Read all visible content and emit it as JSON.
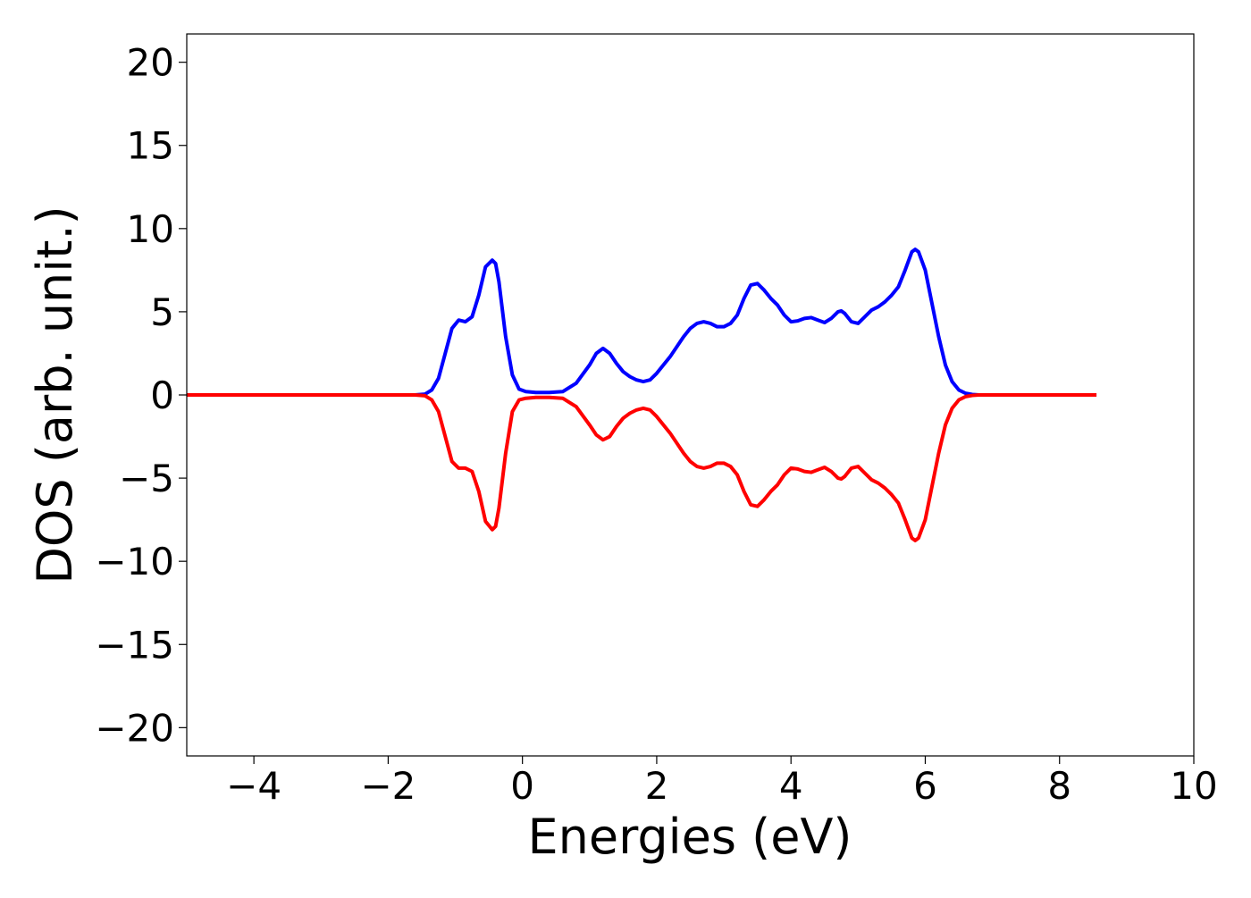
{
  "chart_data": {
    "type": "line",
    "title": "",
    "xlabel": "Energies (eV)",
    "ylabel": "DOS (arb. unit.)",
    "xlim": [
      -5.0,
      10.0
    ],
    "ylim": [
      -21.7,
      21.7
    ],
    "grid": false,
    "legend": "none",
    "xticks": [
      {
        "value": -4,
        "label": "−4"
      },
      {
        "value": -2,
        "label": "−2"
      },
      {
        "value": 0,
        "label": "0"
      },
      {
        "value": 2,
        "label": "2"
      },
      {
        "value": 4,
        "label": "4"
      },
      {
        "value": 6,
        "label": "6"
      },
      {
        "value": 8,
        "label": "8"
      },
      {
        "value": 10,
        "label": "10"
      }
    ],
    "yticks": [
      {
        "value": 20,
        "label": "20"
      },
      {
        "value": 15,
        "label": "15"
      },
      {
        "value": 10,
        "label": "10"
      },
      {
        "value": 5,
        "label": "5"
      },
      {
        "value": 0,
        "label": "0"
      },
      {
        "value": -5,
        "label": "−5"
      },
      {
        "value": -10,
        "label": "−10"
      },
      {
        "value": -15,
        "label": "−15"
      },
      {
        "value": -20,
        "label": "−20"
      }
    ],
    "series": [
      {
        "color": "#0000ff",
        "x": [
          -5.0,
          -2.0,
          -1.6,
          -1.45,
          -1.35,
          -1.25,
          -1.15,
          -1.05,
          -0.95,
          -0.85,
          -0.75,
          -0.65,
          -0.55,
          -0.45,
          -0.4,
          -0.35,
          -0.25,
          -0.15,
          -0.05,
          0.05,
          0.2,
          0.4,
          0.6,
          0.8,
          1.0,
          1.1,
          1.2,
          1.3,
          1.4,
          1.5,
          1.6,
          1.7,
          1.8,
          1.9,
          2.0,
          2.2,
          2.4,
          2.5,
          2.6,
          2.7,
          2.8,
          2.9,
          3.0,
          3.1,
          3.2,
          3.3,
          3.4,
          3.5,
          3.6,
          3.7,
          3.8,
          3.9,
          4.0,
          4.1,
          4.2,
          4.3,
          4.4,
          4.5,
          4.6,
          4.7,
          4.75,
          4.8,
          4.9,
          5.0,
          5.1,
          5.2,
          5.3,
          5.4,
          5.5,
          5.6,
          5.7,
          5.8,
          5.85,
          5.9,
          6.0,
          6.1,
          6.2,
          6.3,
          6.4,
          6.5,
          6.6,
          6.7,
          6.8,
          7.0,
          8.55
        ],
        "y": [
          0.0,
          0.0,
          0.0,
          0.05,
          0.3,
          1.0,
          2.5,
          4.0,
          4.5,
          4.4,
          4.7,
          6.0,
          7.7,
          8.1,
          7.9,
          6.8,
          3.5,
          1.2,
          0.35,
          0.2,
          0.15,
          0.15,
          0.2,
          0.7,
          1.8,
          2.5,
          2.8,
          2.5,
          1.9,
          1.4,
          1.1,
          0.9,
          0.8,
          0.9,
          1.3,
          2.3,
          3.5,
          4.0,
          4.3,
          4.4,
          4.3,
          4.1,
          4.1,
          4.3,
          4.8,
          5.8,
          6.6,
          6.7,
          6.3,
          5.8,
          5.4,
          4.8,
          4.4,
          4.45,
          4.6,
          4.65,
          4.5,
          4.35,
          4.6,
          5.0,
          5.05,
          4.9,
          4.4,
          4.3,
          4.7,
          5.1,
          5.3,
          5.6,
          6.0,
          6.5,
          7.5,
          8.6,
          8.75,
          8.6,
          7.5,
          5.5,
          3.5,
          1.8,
          0.8,
          0.3,
          0.1,
          0.03,
          0.0,
          0.0,
          0.0
        ]
      },
      {
        "color": "#ff0000",
        "x": [
          -5.0,
          -2.0,
          -1.6,
          -1.45,
          -1.35,
          -1.25,
          -1.15,
          -1.05,
          -0.95,
          -0.85,
          -0.75,
          -0.65,
          -0.55,
          -0.45,
          -0.4,
          -0.35,
          -0.25,
          -0.15,
          -0.05,
          0.05,
          0.2,
          0.4,
          0.6,
          0.8,
          1.0,
          1.1,
          1.2,
          1.3,
          1.4,
          1.5,
          1.6,
          1.7,
          1.8,
          1.9,
          2.0,
          2.2,
          2.4,
          2.5,
          2.6,
          2.7,
          2.8,
          2.9,
          3.0,
          3.1,
          3.2,
          3.3,
          3.4,
          3.5,
          3.6,
          3.7,
          3.8,
          3.9,
          4.0,
          4.1,
          4.2,
          4.3,
          4.4,
          4.5,
          4.6,
          4.7,
          4.75,
          4.8,
          4.9,
          5.0,
          5.1,
          5.2,
          5.3,
          5.4,
          5.5,
          5.6,
          5.7,
          5.8,
          5.85,
          5.9,
          6.0,
          6.1,
          6.2,
          6.3,
          6.4,
          6.5,
          6.6,
          6.7,
          6.8,
          7.0,
          8.55
        ],
        "y": [
          0.0,
          0.0,
          0.0,
          -0.05,
          -0.3,
          -1.0,
          -2.5,
          -4.0,
          -4.4,
          -4.4,
          -4.6,
          -5.8,
          -7.6,
          -8.1,
          -7.9,
          -6.8,
          -3.5,
          -1.0,
          -0.3,
          -0.2,
          -0.15,
          -0.15,
          -0.2,
          -0.7,
          -1.8,
          -2.4,
          -2.7,
          -2.5,
          -1.9,
          -1.4,
          -1.1,
          -0.9,
          -0.8,
          -0.9,
          -1.3,
          -2.3,
          -3.5,
          -4.0,
          -4.3,
          -4.4,
          -4.3,
          -4.1,
          -4.1,
          -4.3,
          -4.8,
          -5.8,
          -6.6,
          -6.7,
          -6.3,
          -5.8,
          -5.4,
          -4.8,
          -4.4,
          -4.45,
          -4.6,
          -4.65,
          -4.5,
          -4.35,
          -4.6,
          -5.0,
          -5.05,
          -4.9,
          -4.4,
          -4.3,
          -4.7,
          -5.1,
          -5.3,
          -5.6,
          -6.0,
          -6.5,
          -7.5,
          -8.6,
          -8.75,
          -8.6,
          -7.5,
          -5.5,
          -3.5,
          -1.8,
          -0.8,
          -0.3,
          -0.1,
          -0.03,
          0.0,
          0.0,
          0.0
        ]
      }
    ]
  }
}
